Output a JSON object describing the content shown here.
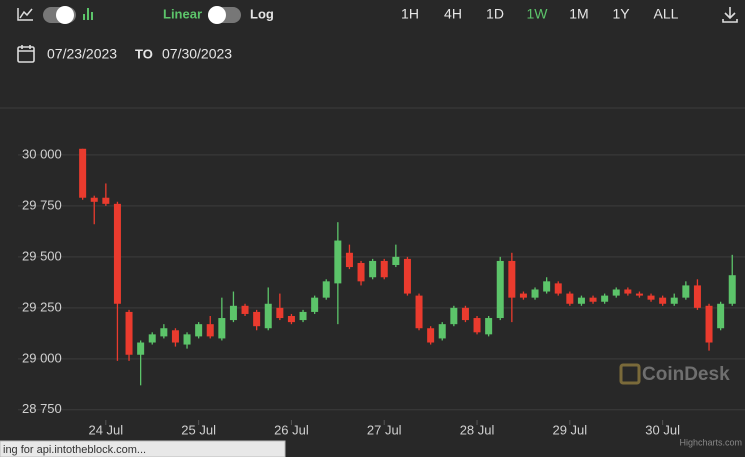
{
  "toolbar": {
    "scale_linear": "Linear",
    "scale_log": "Log",
    "ranges": [
      "1H",
      "4H",
      "1D",
      "1W",
      "1M",
      "1Y",
      "ALL"
    ],
    "active_range": "1W"
  },
  "date_range": {
    "from": "07/23/2023",
    "separator": "TO",
    "to": "07/30/2023"
  },
  "status_bar": "ing for api.intotheblock.com...",
  "chart_data": {
    "type": "candlestick",
    "watermark": "CoinDesk",
    "credits": "Highcharts.com",
    "up_color": "#5cc46a",
    "down_color": "#ea3b2e",
    "grid": true,
    "ylim": [
      28700,
      30230
    ],
    "yticks": [
      {
        "value": 28750,
        "label": "28 750"
      },
      {
        "value": 29000,
        "label": "29 000"
      },
      {
        "value": 29250,
        "label": "29 250"
      },
      {
        "value": 29500,
        "label": "29 500"
      },
      {
        "value": 29750,
        "label": "29 750"
      },
      {
        "value": 30000,
        "label": "30 000"
      }
    ],
    "xlim": [
      -0.4,
      57.1
    ],
    "xticks": [
      {
        "value": 2,
        "label": "24 Jul"
      },
      {
        "value": 10,
        "label": "25 Jul"
      },
      {
        "value": 18,
        "label": "26 Jul"
      },
      {
        "value": 26,
        "label": "27 Jul"
      },
      {
        "value": 34,
        "label": "28 Jul"
      },
      {
        "value": 42,
        "label": "29 Jul"
      },
      {
        "value": 50,
        "label": "30 Jul"
      }
    ],
    "open": [
      30030,
      29790,
      29790,
      29760,
      29230,
      29020,
      29080,
      29110,
      29140,
      29070,
      29110,
      29170,
      29100,
      29190,
      29260,
      29230,
      29150,
      29250,
      29210,
      29190,
      29230,
      29300,
      29370,
      29520,
      29470,
      29400,
      29480,
      29460,
      29490,
      29310,
      29150,
      29100,
      29170,
      29250,
      29200,
      29120,
      29200,
      29480,
      29320,
      29300,
      29330,
      29370,
      29320,
      29270,
      29300,
      29280,
      29310,
      29340,
      29320,
      29310,
      29300,
      29270,
      29300,
      29360,
      29260,
      29150,
      29270
    ],
    "high": [
      30030,
      29800,
      29860,
      29770,
      29240,
      29090,
      29130,
      29170,
      29150,
      29130,
      29180,
      29210,
      29300,
      29330,
      29270,
      29240,
      29350,
      29320,
      29220,
      29240,
      29310,
      29390,
      29670,
      29560,
      29480,
      29490,
      29490,
      29560,
      29500,
      29320,
      29160,
      29180,
      29260,
      29260,
      29210,
      29210,
      29500,
      29520,
      29330,
      29350,
      29400,
      29380,
      29330,
      29310,
      29310,
      29320,
      29350,
      29350,
      29330,
      29320,
      29310,
      29320,
      29380,
      29390,
      29270,
      29280,
      29510
    ],
    "low": [
      29780,
      29660,
      29750,
      28990,
      28990,
      28870,
      29070,
      29100,
      29060,
      29050,
      29100,
      29100,
      29090,
      29180,
      29210,
      29140,
      29140,
      29190,
      29170,
      29180,
      29220,
      29290,
      29170,
      29440,
      29360,
      29390,
      29390,
      29450,
      29310,
      29140,
      29070,
      29090,
      29160,
      29180,
      29120,
      29110,
      29190,
      29180,
      29290,
      29290,
      29320,
      29310,
      29260,
      29260,
      29270,
      29270,
      29300,
      29310,
      29300,
      29280,
      29260,
      29260,
      29290,
      29240,
      29040,
      29140,
      29260
    ],
    "close": [
      29790,
      29770,
      29760,
      29270,
      29020,
      29080,
      29120,
      29150,
      29080,
      29120,
      29170,
      29110,
      29200,
      29260,
      29220,
      29160,
      29270,
      29200,
      29180,
      29230,
      29300,
      29380,
      29580,
      29450,
      29380,
      29480,
      29400,
      29500,
      29320,
      29150,
      29080,
      29170,
      29250,
      29190,
      29130,
      29200,
      29480,
      29300,
      29300,
      29340,
      29380,
      29320,
      29270,
      29300,
      29280,
      29310,
      29340,
      29320,
      29310,
      29290,
      29270,
      29300,
      29360,
      29250,
      29080,
      29270,
      29410
    ]
  }
}
